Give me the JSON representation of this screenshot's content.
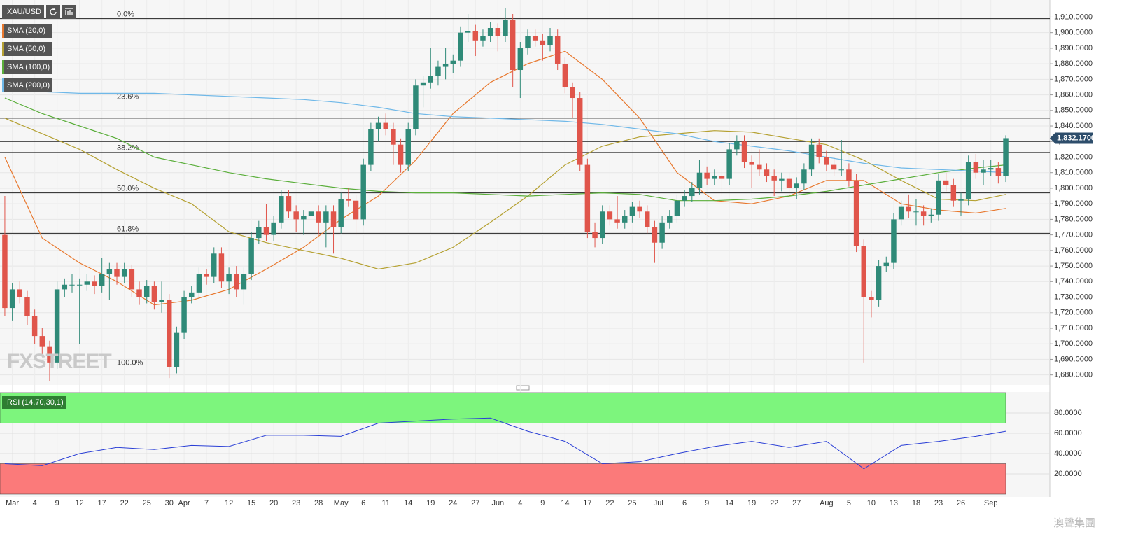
{
  "chart_data": {
    "type": "candlestick",
    "symbol": "XAU/USD",
    "up_color": "#2f8a78",
    "down_color": "#e0554b",
    "xlim": [
      -0.65,
      139.9
    ],
    "ylim": [
      1674,
      1921
    ],
    "yticks": [
      {
        "value": 1680,
        "label": "1,680.0000"
      },
      {
        "value": 1690,
        "label": "1,690.0000"
      },
      {
        "value": 1700,
        "label": "1,700.0000"
      },
      {
        "value": 1710,
        "label": "1,710.0000"
      },
      {
        "value": 1720,
        "label": "1,720.0000"
      },
      {
        "value": 1730,
        "label": "1,730.0000"
      },
      {
        "value": 1740,
        "label": "1,740.0000"
      },
      {
        "value": 1750,
        "label": "1,750.0000"
      },
      {
        "value": 1760,
        "label": "1,760.0000"
      },
      {
        "value": 1770,
        "label": "1,770.0000"
      },
      {
        "value": 1780,
        "label": "1,780.0000"
      },
      {
        "value": 1790,
        "label": "1,790.0000"
      },
      {
        "value": 1800,
        "label": "1,800.0000"
      },
      {
        "value": 1810,
        "label": "1,810.0000"
      },
      {
        "value": 1820,
        "label": "1,820.0000"
      },
      {
        "value": 1830,
        "label": "1,830.0000"
      },
      {
        "value": 1840,
        "label": "1,840.0000"
      },
      {
        "value": 1850,
        "label": "1,850.0000"
      },
      {
        "value": 1860,
        "label": "1,860.0000"
      },
      {
        "value": 1870,
        "label": "1,870.0000"
      },
      {
        "value": 1880,
        "label": "1,880.0000"
      },
      {
        "value": 1890,
        "label": "1,890.0000"
      },
      {
        "value": 1900,
        "label": "1,900.0000"
      },
      {
        "value": 1910,
        "label": "1,910.0000"
      }
    ],
    "xticks": [
      {
        "value": 1,
        "label": "Mar"
      },
      {
        "value": 4,
        "label": "4"
      },
      {
        "value": 7,
        "label": "9"
      },
      {
        "value": 10,
        "label": "12"
      },
      {
        "value": 13,
        "label": "17"
      },
      {
        "value": 16,
        "label": "22"
      },
      {
        "value": 19,
        "label": "25"
      },
      {
        "value": 22,
        "label": "30"
      },
      {
        "value": 24,
        "label": "Apr"
      },
      {
        "value": 27,
        "label": "7"
      },
      {
        "value": 30,
        "label": "12"
      },
      {
        "value": 33,
        "label": "15"
      },
      {
        "value": 36,
        "label": "20"
      },
      {
        "value": 39,
        "label": "23"
      },
      {
        "value": 42,
        "label": "28"
      },
      {
        "value": 45,
        "label": "May"
      },
      {
        "value": 48,
        "label": "6"
      },
      {
        "value": 51,
        "label": "11"
      },
      {
        "value": 54,
        "label": "14"
      },
      {
        "value": 57,
        "label": "19"
      },
      {
        "value": 60,
        "label": "24"
      },
      {
        "value": 63,
        "label": "27"
      },
      {
        "value": 66,
        "label": "Jun"
      },
      {
        "value": 69,
        "label": "4"
      },
      {
        "value": 72,
        "label": "9"
      },
      {
        "value": 75,
        "label": "14"
      },
      {
        "value": 78,
        "label": "17"
      },
      {
        "value": 81,
        "label": "22"
      },
      {
        "value": 84,
        "label": "25"
      },
      {
        "value": 87.5,
        "label": "Jul"
      },
      {
        "value": 91,
        "label": "6"
      },
      {
        "value": 94,
        "label": "9"
      },
      {
        "value": 97,
        "label": "14"
      },
      {
        "value": 100,
        "label": "19"
      },
      {
        "value": 103,
        "label": "22"
      },
      {
        "value": 106,
        "label": "27"
      },
      {
        "value": 110,
        "label": "Aug"
      },
      {
        "value": 113,
        "label": "5"
      },
      {
        "value": 116,
        "label": "10"
      },
      {
        "value": 119,
        "label": "13"
      },
      {
        "value": 122,
        "label": "18"
      },
      {
        "value": 125,
        "label": "23"
      },
      {
        "value": 128,
        "label": "26"
      },
      {
        "value": 132,
        "label": "Sep"
      }
    ],
    "candles": [
      [
        1770,
        1795,
        1718,
        1723
      ],
      [
        1723,
        1739,
        1715,
        1735
      ],
      [
        1735,
        1740,
        1726,
        1730
      ],
      [
        1730,
        1734,
        1712,
        1718
      ],
      [
        1718,
        1722,
        1700,
        1705
      ],
      [
        1705,
        1710,
        1692,
        1698
      ],
      [
        1698,
        1702,
        1676,
        1688
      ],
      [
        1688,
        1740,
        1684,
        1735
      ],
      [
        1735,
        1742,
        1730,
        1738
      ],
      [
        1738,
        1745,
        1733,
        1738
      ],
      [
        1738,
        1742,
        1700,
        1738
      ],
      [
        1738,
        1745,
        1734,
        1740
      ],
      [
        1740,
        1744,
        1732,
        1737
      ],
      [
        1737,
        1755,
        1733,
        1745
      ],
      [
        1745,
        1752,
        1728,
        1748
      ],
      [
        1748,
        1752,
        1738,
        1743
      ],
      [
        1743,
        1752,
        1739,
        1748
      ],
      [
        1748,
        1751,
        1730,
        1735
      ],
      [
        1735,
        1740,
        1725,
        1730
      ],
      [
        1730,
        1741,
        1726,
        1737
      ],
      [
        1737,
        1740,
        1722,
        1727
      ],
      [
        1727,
        1740,
        1720,
        1728
      ],
      [
        1728,
        1732,
        1678,
        1685
      ],
      [
        1685,
        1711,
        1681,
        1707
      ],
      [
        1707,
        1734,
        1703,
        1730
      ],
      [
        1730,
        1737,
        1726,
        1733
      ],
      [
        1733,
        1749,
        1729,
        1745
      ],
      [
        1745,
        1748,
        1738,
        1743
      ],
      [
        1743,
        1762,
        1739,
        1758
      ],
      [
        1758,
        1762,
        1736,
        1740
      ],
      [
        1740,
        1749,
        1732,
        1745
      ],
      [
        1745,
        1750,
        1730,
        1735
      ],
      [
        1735,
        1749,
        1725,
        1745
      ],
      [
        1745,
        1772,
        1741,
        1768
      ],
      [
        1768,
        1779,
        1764,
        1775
      ],
      [
        1775,
        1790,
        1766,
        1770
      ],
      [
        1770,
        1782,
        1766,
        1778
      ],
      [
        1778,
        1799,
        1774,
        1795
      ],
      [
        1795,
        1799,
        1781,
        1785
      ],
      [
        1785,
        1789,
        1772,
        1780
      ],
      [
        1780,
        1786,
        1770,
        1782
      ],
      [
        1782,
        1789,
        1775,
        1785
      ],
      [
        1785,
        1789,
        1770,
        1778
      ],
      [
        1778,
        1789,
        1762,
        1785
      ],
      [
        1785,
        1789,
        1758,
        1775
      ],
      [
        1775,
        1797,
        1771,
        1793
      ],
      [
        1793,
        1800,
        1788,
        1792
      ],
      [
        1792,
        1796,
        1770,
        1780
      ],
      [
        1780,
        1819,
        1776,
        1815
      ],
      [
        1815,
        1842,
        1811,
        1838
      ],
      [
        1838,
        1846,
        1830,
        1842
      ],
      [
        1842,
        1848,
        1834,
        1838
      ],
      [
        1838,
        1842,
        1815,
        1828
      ],
      [
        1828,
        1832,
        1810,
        1815
      ],
      [
        1815,
        1842,
        1811,
        1838
      ],
      [
        1838,
        1870,
        1834,
        1866
      ],
      [
        1866,
        1872,
        1852,
        1868
      ],
      [
        1868,
        1890,
        1864,
        1872
      ],
      [
        1872,
        1882,
        1866,
        1878
      ],
      [
        1878,
        1890,
        1870,
        1880
      ],
      [
        1880,
        1886,
        1874,
        1882
      ],
      [
        1882,
        1904,
        1878,
        1900
      ],
      [
        1900,
        1912,
        1894,
        1901
      ],
      [
        1901,
        1905,
        1885,
        1895
      ],
      [
        1895,
        1902,
        1891,
        1898
      ],
      [
        1898,
        1907,
        1894,
        1903
      ],
      [
        1903,
        1906,
        1888,
        1898
      ],
      [
        1898,
        1916,
        1894,
        1908
      ],
      [
        1908,
        1912,
        1865,
        1876
      ],
      [
        1876,
        1894,
        1858,
        1890
      ],
      [
        1890,
        1902,
        1886,
        1898
      ],
      [
        1898,
        1902,
        1891,
        1895
      ],
      [
        1895,
        1899,
        1882,
        1892
      ],
      [
        1892,
        1903,
        1888,
        1898
      ],
      [
        1898,
        1902,
        1876,
        1880
      ],
      [
        1880,
        1884,
        1861,
        1865
      ],
      [
        1865,
        1868,
        1845,
        1858
      ],
      [
        1858,
        1862,
        1811,
        1815
      ],
      [
        1815,
        1819,
        1768,
        1772
      ],
      [
        1772,
        1778,
        1762,
        1768
      ],
      [
        1768,
        1789,
        1764,
        1785
      ],
      [
        1785,
        1789,
        1776,
        1780
      ],
      [
        1780,
        1795,
        1774,
        1778
      ],
      [
        1778,
        1786,
        1774,
        1782
      ],
      [
        1782,
        1791,
        1778,
        1788
      ],
      [
        1788,
        1792,
        1781,
        1785
      ],
      [
        1785,
        1789,
        1771,
        1775
      ],
      [
        1775,
        1779,
        1752,
        1765
      ],
      [
        1765,
        1782,
        1761,
        1778
      ],
      [
        1778,
        1786,
        1774,
        1782
      ],
      [
        1782,
        1796,
        1778,
        1792
      ],
      [
        1792,
        1799,
        1788,
        1795
      ],
      [
        1795,
        1804,
        1791,
        1800
      ],
      [
        1800,
        1818,
        1796,
        1810
      ],
      [
        1810,
        1814,
        1802,
        1806
      ],
      [
        1806,
        1812,
        1802,
        1808
      ],
      [
        1808,
        1812,
        1795,
        1806
      ],
      [
        1806,
        1829,
        1802,
        1825
      ],
      [
        1825,
        1834,
        1821,
        1830
      ],
      [
        1830,
        1834,
        1813,
        1817
      ],
      [
        1817,
        1821,
        1800,
        1815
      ],
      [
        1815,
        1825,
        1808,
        1812
      ],
      [
        1812,
        1816,
        1804,
        1808
      ],
      [
        1808,
        1812,
        1795,
        1805
      ],
      [
        1805,
        1810,
        1798,
        1806
      ],
      [
        1806,
        1810,
        1796,
        1800
      ],
      [
        1800,
        1807,
        1793,
        1803
      ],
      [
        1803,
        1816,
        1799,
        1812
      ],
      [
        1812,
        1832,
        1808,
        1828
      ],
      [
        1828,
        1832,
        1816,
        1820
      ],
      [
        1820,
        1824,
        1811,
        1815
      ],
      [
        1815,
        1820,
        1808,
        1812
      ],
      [
        1812,
        1831,
        1808,
        1812
      ],
      [
        1812,
        1816,
        1801,
        1805
      ],
      [
        1805,
        1809,
        1759,
        1763
      ],
      [
        1763,
        1767,
        1688,
        1730
      ],
      [
        1730,
        1734,
        1717,
        1728
      ],
      [
        1728,
        1754,
        1724,
        1750
      ],
      [
        1750,
        1756,
        1746,
        1752
      ],
      [
        1752,
        1784,
        1748,
        1780
      ],
      [
        1780,
        1792,
        1776,
        1788
      ],
      [
        1788,
        1796,
        1781,
        1785
      ],
      [
        1785,
        1793,
        1776,
        1785
      ],
      [
        1785,
        1789,
        1776,
        1782
      ],
      [
        1782,
        1787,
        1778,
        1783
      ],
      [
        1783,
        1809,
        1779,
        1805
      ],
      [
        1805,
        1810,
        1798,
        1802
      ],
      [
        1802,
        1806,
        1788,
        1792
      ],
      [
        1792,
        1797,
        1782,
        1793
      ],
      [
        1793,
        1821,
        1789,
        1817
      ],
      [
        1817,
        1822,
        1806,
        1810
      ],
      [
        1810,
        1818,
        1802,
        1812
      ],
      [
        1812,
        1818,
        1808,
        1813
      ],
      [
        1813,
        1817,
        1803,
        1808
      ],
      [
        1808,
        1834,
        1804,
        1832.17
      ]
    ],
    "last_price": {
      "value": 1832.17,
      "label": "1,832.1700"
    },
    "fib_levels": [
      {
        "label": "0.0%",
        "value": 1909
      },
      {
        "label": "23.6%",
        "value": 1856
      },
      {
        "label": "38.2%",
        "value": 1823
      },
      {
        "label": "50.0%",
        "value": 1797
      },
      {
        "label": "61.8%",
        "value": 1771
      },
      {
        "label": "100.0%",
        "value": 1685
      }
    ],
    "levels": [
      1845,
      1830
    ],
    "sma": {
      "x": [
        0,
        5,
        10,
        15,
        20,
        25,
        30,
        35,
        40,
        45,
        50,
        55,
        60,
        65,
        70,
        75,
        80,
        85,
        90,
        95,
        100,
        105,
        110,
        115,
        120,
        125,
        130,
        134
      ],
      "series": [
        {
          "name": "SMA (20,0)",
          "color": "#e8782e",
          "values": [
            1820,
            1768,
            1752,
            1740,
            1725,
            1728,
            1735,
            1748,
            1762,
            1780,
            1795,
            1818,
            1848,
            1868,
            1880,
            1888,
            1870,
            1845,
            1810,
            1792,
            1790,
            1795,
            1805,
            1805,
            1790,
            1786,
            1784,
            1787
          ]
        },
        {
          "name": "SMA (50,0)",
          "color": "#b5a132",
          "values": [
            1845,
            1835,
            1825,
            1812,
            1800,
            1790,
            1772,
            1765,
            1760,
            1755,
            1748,
            1752,
            1762,
            1778,
            1795,
            1815,
            1827,
            1833,
            1835,
            1837,
            1836,
            1832,
            1828,
            1818,
            1805,
            1793,
            1792,
            1796
          ]
        },
        {
          "name": "SMA (100,0)",
          "color": "#5aae3a",
          "values": [
            1858,
            1848,
            1840,
            1832,
            1820,
            1815,
            1810,
            1806,
            1803,
            1800,
            1798,
            1797,
            1797,
            1796,
            1795,
            1796,
            1797,
            1796,
            1792,
            1792,
            1793,
            1795,
            1798,
            1802,
            1806,
            1810,
            1813,
            1815
          ]
        },
        {
          "name": "SMA (200,0)",
          "color": "#6fb8e8",
          "values": [
            1862,
            1862,
            1861,
            1861,
            1861,
            1860,
            1859,
            1858,
            1857,
            1855,
            1852,
            1848,
            1846,
            1845,
            1844,
            1843,
            1841,
            1838,
            1835,
            1830,
            1827,
            1824,
            1820,
            1816,
            1813,
            1812,
            1811,
            1810
          ]
        }
      ]
    },
    "rsi": {
      "name": "RSI (14,70,30,1)",
      "color": "#2a3fd6",
      "x": [
        0,
        5,
        10,
        15,
        20,
        25,
        30,
        35,
        40,
        45,
        50,
        55,
        60,
        65,
        70,
        75,
        80,
        85,
        90,
        95,
        100,
        105,
        110,
        115,
        120,
        125,
        130,
        134
      ],
      "values": [
        30,
        28,
        40,
        46,
        44,
        48,
        47,
        58,
        58,
        57,
        70,
        72,
        74,
        75,
        62,
        52,
        30,
        32,
        40,
        47,
        52,
        46,
        52,
        25,
        48,
        52,
        57,
        62
      ],
      "ylim": [
        0,
        100
      ],
      "yticks": [
        {
          "value": 20,
          "label": "20.0000"
        },
        {
          "value": 40,
          "label": "40.0000"
        },
        {
          "value": 60,
          "label": "60.0000"
        },
        {
          "value": 80,
          "label": "80.0000"
        }
      ],
      "overbought": 70,
      "oversold": 30
    },
    "watermark": "FXSTREET",
    "watermark2": "澳聲集團"
  }
}
